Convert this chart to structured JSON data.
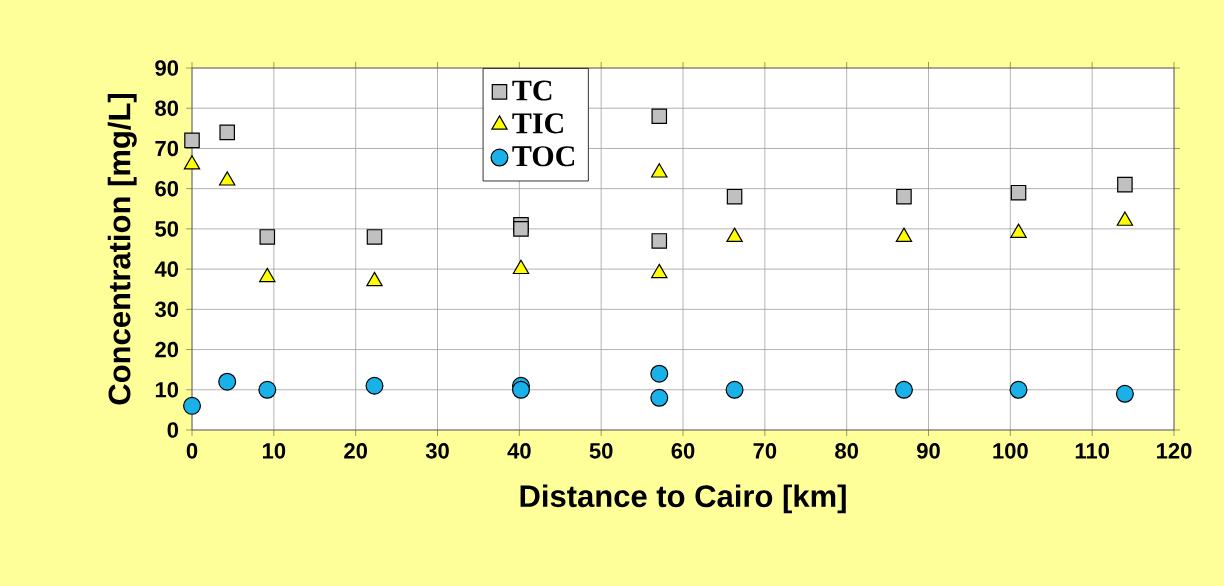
{
  "chart_data": {
    "type": "scatter",
    "xlabel": "Distance to Cairo [km]",
    "ylabel": "Concentration [mg/L]",
    "xlim": [
      0,
      120
    ],
    "xticks": [
      0,
      10,
      20,
      30,
      40,
      50,
      60,
      70,
      80,
      90,
      100,
      110,
      120
    ],
    "ylim": [
      0,
      90
    ],
    "yticks": [
      0,
      10,
      20,
      30,
      40,
      50,
      60,
      70,
      80,
      90
    ],
    "grid": true,
    "legend": "top",
    "series": [
      {
        "name": "TC",
        "color": "#c0c0c0",
        "marker": "square",
        "x": [
          0,
          4.3,
          9.2,
          22.3,
          40.2,
          40.2,
          57.1,
          57.1,
          66.3,
          87,
          101,
          114
        ],
        "values": [
          72,
          74,
          48,
          48,
          51,
          50,
          78,
          47,
          58,
          58,
          59,
          61
        ]
      },
      {
        "name": "TIC",
        "color": "#ffff00",
        "marker": "triangle",
        "x": [
          0,
          4.3,
          9.2,
          22.3,
          40.2,
          57.1,
          57.1,
          66.3,
          87,
          101,
          114
        ],
        "values": [
          66,
          62,
          38,
          37,
          40,
          64,
          39,
          48,
          48,
          49,
          52
        ]
      },
      {
        "name": "TOC",
        "color": "#1ab0e8",
        "marker": "circle",
        "x": [
          0,
          4.3,
          9.2,
          22.3,
          40.2,
          40.2,
          57.1,
          57.1,
          66.3,
          87,
          101,
          114
        ],
        "values": [
          6,
          12,
          10,
          11,
          11,
          10,
          14,
          8,
          10,
          10,
          10,
          9
        ]
      }
    ]
  }
}
